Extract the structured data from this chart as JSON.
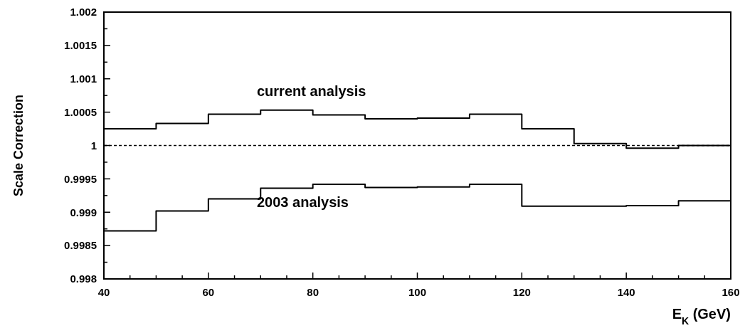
{
  "chart_data": {
    "type": "step",
    "xlabel": "E$_{K}$ (GeV)",
    "ylabel": "Scale Correction",
    "x": [
      40,
      50,
      60,
      70,
      80,
      90,
      100,
      110,
      120,
      130,
      140,
      150,
      160
    ],
    "series": [
      {
        "color": "#000000",
        "values": [
          1.00025,
          1.00033,
          1.00047,
          1.00053,
          1.00046,
          1.0004,
          1.00041,
          1.00047,
          1.00025,
          1.00003,
          0.99996,
          1.0,
          1.0
        ]
      },
      {
        "color": "#000000",
        "values": [
          0.99872,
          0.99902,
          0.9992,
          0.99936,
          0.99942,
          0.99937,
          0.99938,
          0.99942,
          0.99909,
          0.99909,
          0.9991,
          0.99917,
          0.99917
        ]
      }
    ],
    "xlim": [
      40,
      160
    ],
    "ylim": [
      0.998,
      1.002
    ],
    "xticks": [
      40,
      {
        "value": 45,
        "label": null
      },
      60,
      {
        "value": 55,
        "label": null
      },
      80,
      {
        "value": 65,
        "label": null
      },
      {
        "value": 75,
        "label": null
      },
      {
        "value": 85,
        "label": null
      },
      100,
      {
        "value": 95,
        "label": null
      },
      120,
      {
        "value": 105,
        "label": null
      },
      {
        "value": 115,
        "label": null
      },
      {
        "value": 125,
        "label": null
      },
      140,
      {
        "value": 135,
        "label": null
      },
      {
        "value": 145,
        "label": null
      },
      160,
      {
        "value": 155,
        "label": null
      },
      {
        "value": 50,
        "label": null
      },
      {
        "value": 70,
        "label": null
      },
      {
        "value": 90,
        "label": null
      },
      {
        "value": 110,
        "label": null
      },
      {
        "value": 130,
        "label": null
      },
      {
        "value": 150,
        "label": null
      }
    ],
    "yticks": [
      0.998,
      {
        "value": 0.99825,
        "label": null
      },
      0.9985,
      {
        "value": 0.99875,
        "label": null
      },
      0.999,
      {
        "value": 0.99925,
        "label": null
      },
      0.9995,
      {
        "value": 0.99975,
        "label": null
      },
      1,
      {
        "value": 1.00025,
        "label": null
      },
      1.0005,
      {
        "value": 1.00075,
        "label": null
      },
      1.001,
      {
        "value": 1.00125,
        "label": null
      },
      1.0015,
      {
        "value": 1.00175,
        "label": null
      },
      1.002
    ],
    "ref_lines": [
      {
        "axis": "y",
        "value": 1,
        "line_style": "dashed",
        "color": "#000000"
      }
    ],
    "annotations": [
      "current analysis",
      "2003 analysis"
    ],
    "grid": false,
    "line_style": "solid",
    "marker": "none"
  }
}
